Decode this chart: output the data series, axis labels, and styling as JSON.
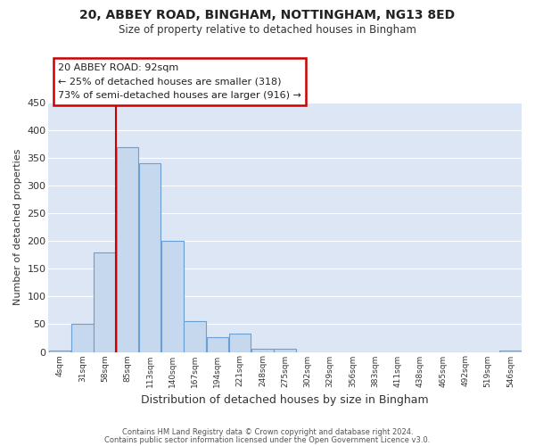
{
  "title1": "20, ABBEY ROAD, BINGHAM, NOTTINGHAM, NG13 8ED",
  "title2": "Size of property relative to detached houses in Bingham",
  "xlabel": "Distribution of detached houses by size in Bingham",
  "ylabel": "Number of detached properties",
  "bin_labels": [
    "4sqm",
    "31sqm",
    "58sqm",
    "85sqm",
    "113sqm",
    "140sqm",
    "167sqm",
    "194sqm",
    "221sqm",
    "248sqm",
    "275sqm",
    "302sqm",
    "329sqm",
    "356sqm",
    "383sqm",
    "411sqm",
    "438sqm",
    "465sqm",
    "492sqm",
    "519sqm",
    "546sqm"
  ],
  "bin_values": [
    3,
    50,
    180,
    370,
    340,
    200,
    55,
    27,
    33,
    6,
    5,
    0,
    0,
    0,
    0,
    0,
    0,
    0,
    0,
    0,
    3
  ],
  "bar_color": "#c5d8ee",
  "bar_edge_color": "#6b9fd4",
  "figure_background": "#ffffff",
  "axes_background": "#dce6f5",
  "grid_color": "#ffffff",
  "vline_color": "#cc0000",
  "vline_x_index": 3,
  "annotation_text": "20 ABBEY ROAD: 92sqm\n← 25% of detached houses are smaller (318)\n73% of semi-detached houses are larger (916) →",
  "annotation_box_facecolor": "#ffffff",
  "annotation_box_edgecolor": "#cc0000",
  "ylim": [
    0,
    450
  ],
  "yticks": [
    0,
    50,
    100,
    150,
    200,
    250,
    300,
    350,
    400,
    450
  ],
  "footnote1": "Contains HM Land Registry data © Crown copyright and database right 2024.",
  "footnote2": "Contains public sector information licensed under the Open Government Licence v3.0."
}
